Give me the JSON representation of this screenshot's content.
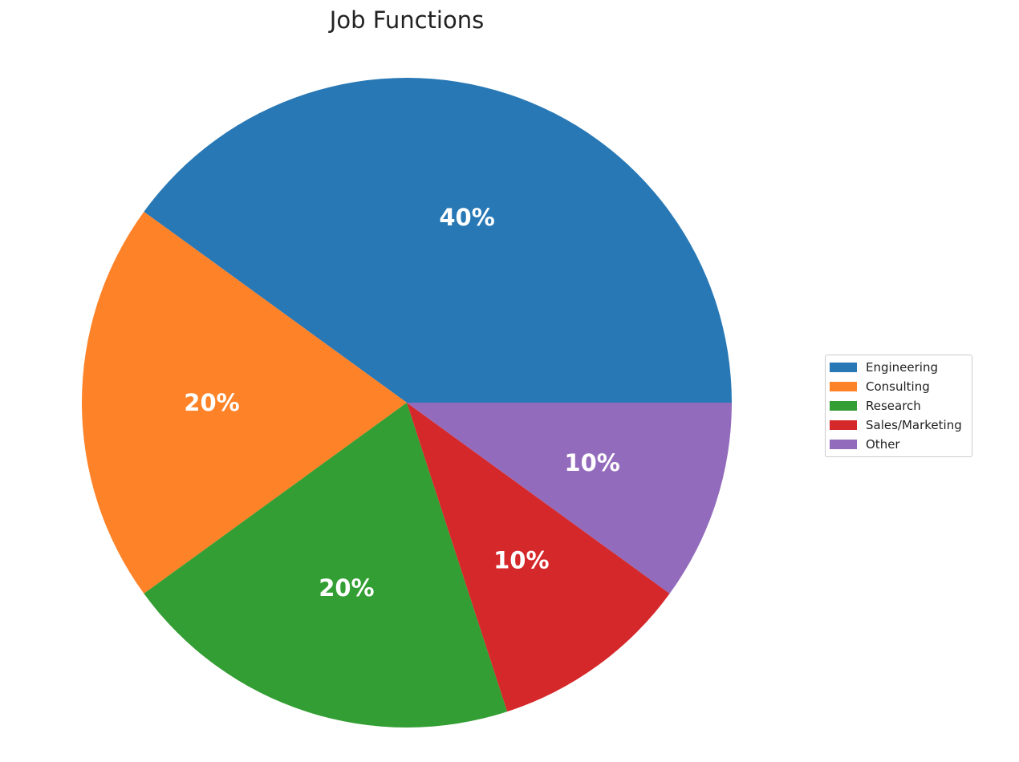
{
  "chart_data": {
    "type": "pie",
    "title": "Job Functions",
    "categories": [
      "Engineering",
      "Consulting",
      "Research",
      "Sales/Marketing",
      "Other"
    ],
    "values": [
      40,
      20,
      20,
      10,
      10
    ],
    "labels": [
      "40%",
      "20%",
      "20%",
      "10%",
      "10%"
    ],
    "colors": [
      "#2878b5",
      "#fe8228",
      "#339e33",
      "#d5282b",
      "#936bbc"
    ],
    "start_angle_deg": 0,
    "direction": "counterclockwise",
    "legend_position": "center-right"
  }
}
